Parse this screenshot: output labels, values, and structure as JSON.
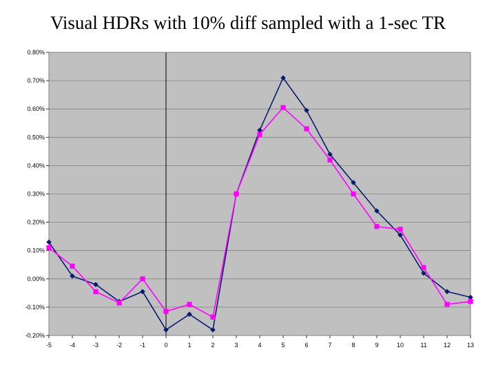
{
  "title": "Visual HDRs with 10% diff sampled with a 1-sec TR",
  "chart_data": {
    "type": "line",
    "x": [
      -5,
      -4,
      -3,
      -2,
      -1,
      0,
      1,
      2,
      3,
      4,
      5,
      6,
      7,
      8,
      9,
      10,
      11,
      12,
      13
    ],
    "ylim": [
      -0.2,
      0.8
    ],
    "y_tick_labels": [
      "0.80%",
      "0.70%",
      "0.60%",
      "0.50%",
      "0.40%",
      "0.30%",
      "0.20%",
      "0.10%",
      "0.00%",
      "-0.10%",
      "-0.20%"
    ],
    "y_tick_values": [
      0.8,
      0.7,
      0.6,
      0.5,
      0.4,
      0.3,
      0.2,
      0.1,
      0.0,
      -0.1,
      -0.2
    ],
    "x_tick_labels": [
      "-5",
      "-4",
      "-3",
      "-2",
      "-1",
      "0",
      "1",
      "2",
      "3",
      "4",
      "5",
      "6",
      "7",
      "8",
      "9",
      "10",
      "11",
      "12",
      "13"
    ],
    "grid": "horizontal",
    "vertical_reference_line_x": 0,
    "series": [
      {
        "color": "#0a1a6e",
        "marker": "diamond",
        "values": [
          0.13,
          0.01,
          -0.02,
          -0.08,
          -0.045,
          -0.18,
          -0.125,
          -0.18,
          0.3,
          0.525,
          0.71,
          0.595,
          0.44,
          0.34,
          0.24,
          0.155,
          0.02,
          -0.045,
          -0.065
        ]
      },
      {
        "color": "#ff00ff",
        "marker": "square",
        "values": [
          0.11,
          0.045,
          -0.045,
          -0.085,
          0.0,
          -0.115,
          -0.09,
          -0.135,
          0.3,
          0.51,
          0.605,
          0.53,
          0.42,
          0.3,
          0.185,
          0.175,
          0.04,
          -0.09,
          -0.08
        ]
      }
    ],
    "colors": {
      "plot_background": "#c0c0c0",
      "gridline": "#808080"
    }
  }
}
